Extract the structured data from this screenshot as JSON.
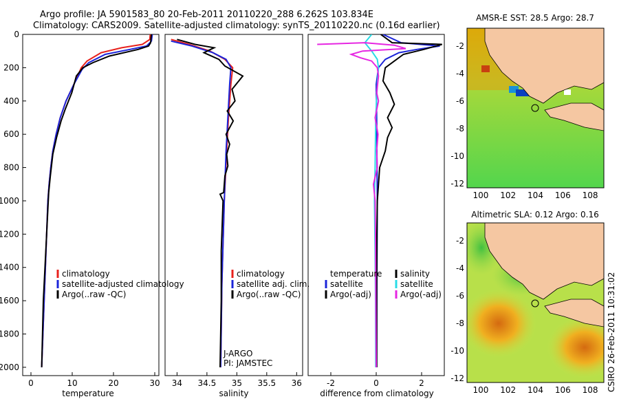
{
  "header": {
    "line1": "Argo profile: JA 5901583_80 20-Feb-2011 20110220_288 6.262S 103.834E",
    "line2": "Climatology: CARS2009. Satellite-adjusted climatology: synTS_20110220.nc (0.16d earlier)"
  },
  "side_label": "CSIRO 26-Feb-2011 10:31:02",
  "colors": {
    "climatology": "#e8211c",
    "satellite": "#1b24d9",
    "argo": "#000000",
    "satellite_sal": "#28dce6",
    "argo_adj_sal": "#e626e2"
  },
  "chart_data": [
    {
      "type": "line",
      "xlabel": "temperature",
      "xlim": [
        -2,
        31
      ],
      "xticks": [
        "0",
        "10",
        "20",
        "30"
      ],
      "ylim": [
        2050,
        0
      ],
      "yticks": [
        "0",
        "200",
        "400",
        "600",
        "800",
        "1000",
        "1200",
        "1400",
        "1600",
        "1800",
        "2000"
      ],
      "legend": [
        "climatology",
        "satellite-adjusted climatology",
        "Argo(..raw -QC)"
      ],
      "series": [
        {
          "name": "climatology",
          "color": "#e8211c",
          "points": [
            [
              28.9,
              0
            ],
            [
              28.8,
              30
            ],
            [
              27,
              60
            ],
            [
              22,
              80
            ],
            [
              17,
              110
            ],
            [
              13.6,
              160
            ],
            [
              12.2,
              200
            ],
            [
              10.4,
              300
            ],
            [
              8.5,
              400
            ],
            [
              7.1,
              500
            ],
            [
              6.1,
              600
            ],
            [
              5.3,
              700
            ],
            [
              4.8,
              800
            ],
            [
              4.4,
              900
            ],
            [
              4.1,
              1000
            ],
            [
              3.8,
              1200
            ],
            [
              3.5,
              1400
            ],
            [
              3.2,
              1600
            ],
            [
              2.9,
              1800
            ],
            [
              2.6,
              2000
            ]
          ]
        },
        {
          "name": "satellite-adjusted climatology",
          "color": "#1b24d9",
          "points": [
            [
              29.4,
              0
            ],
            [
              29.2,
              40
            ],
            [
              28,
              70
            ],
            [
              24,
              90
            ],
            [
              18,
              120
            ],
            [
              14,
              170
            ],
            [
              12.4,
              210
            ],
            [
              10.4,
              300
            ],
            [
              8.5,
              400
            ],
            [
              7.1,
              500
            ],
            [
              6.1,
              600
            ],
            [
              5.3,
              700
            ],
            [
              4.8,
              800
            ],
            [
              4.4,
              900
            ],
            [
              4.1,
              1000
            ],
            [
              3.8,
              1200
            ],
            [
              3.5,
              1400
            ],
            [
              3.2,
              1600
            ],
            [
              2.9,
              1800
            ],
            [
              2.6,
              2000
            ]
          ]
        },
        {
          "name": "Argo(..raw -QC)",
          "color": "#000000",
          "points": [
            [
              29.2,
              0
            ],
            [
              29.1,
              20
            ],
            [
              29,
              50
            ],
            [
              28.5,
              70
            ],
            [
              26,
              90
            ],
            [
              19,
              130
            ],
            [
              15,
              170
            ],
            [
              12.6,
              200
            ],
            [
              11,
              250
            ],
            [
              9.9,
              350
            ],
            [
              8.3,
              450
            ],
            [
              7.3,
              520
            ],
            [
              6.2,
              620
            ],
            [
              5.3,
              720
            ],
            [
              4.7,
              850
            ],
            [
              4.3,
              950
            ],
            [
              4.1,
              1050
            ],
            [
              3.8,
              1200
            ],
            [
              3.4,
              1400
            ],
            [
              3,
              1600
            ],
            [
              2.8,
              1800
            ],
            [
              2.6,
              2000
            ]
          ]
        }
      ]
    },
    {
      "type": "line",
      "xlabel": "salinity",
      "xlim": [
        33.8,
        36.1
      ],
      "xticks": [
        "34",
        "34.5",
        "35",
        "35.5",
        "36"
      ],
      "ylim": [
        2050,
        0
      ],
      "yticks": [],
      "legend": [
        "climatology",
        "satellite adj. clim.",
        "Argo(..raw -QC)"
      ],
      "annotations": [
        "J-ARGO",
        "PI: JAMSTEC"
      ],
      "series": [
        {
          "name": "climatology",
          "color": "#e8211c",
          "points": [
            [
              33.9,
              30
            ],
            [
              34.2,
              60
            ],
            [
              34.55,
              100
            ],
            [
              34.8,
              150
            ],
            [
              34.93,
              200
            ],
            [
              34.9,
              300
            ],
            [
              34.86,
              500
            ],
            [
              34.83,
              700
            ],
            [
              34.79,
              1000
            ],
            [
              34.75,
              1500
            ],
            [
              34.73,
              2000
            ]
          ]
        },
        {
          "name": "satellite adj. clim.",
          "color": "#1b24d9",
          "points": [
            [
              33.9,
              40
            ],
            [
              34.25,
              70
            ],
            [
              34.6,
              110
            ],
            [
              34.82,
              150
            ],
            [
              34.9,
              200
            ],
            [
              34.88,
              300
            ],
            [
              34.85,
              500
            ],
            [
              34.82,
              700
            ],
            [
              34.79,
              1000
            ],
            [
              34.75,
              1500
            ],
            [
              34.73,
              2000
            ]
          ]
        },
        {
          "name": "Argo(..raw -QC)",
          "color": "#000000",
          "points": [
            [
              34,
              30
            ],
            [
              34.3,
              60
            ],
            [
              34.62,
              80
            ],
            [
              34.45,
              110
            ],
            [
              34.7,
              150
            ],
            [
              34.8,
              190
            ],
            [
              35.1,
              250
            ],
            [
              34.92,
              330
            ],
            [
              34.97,
              400
            ],
            [
              34.84,
              460
            ],
            [
              34.94,
              520
            ],
            [
              34.82,
              600
            ],
            [
              34.88,
              660
            ],
            [
              34.83,
              720
            ],
            [
              34.85,
              790
            ],
            [
              34.8,
              850
            ],
            [
              34.78,
              950
            ],
            [
              34.72,
              960
            ],
            [
              34.77,
              1000
            ],
            [
              34.74,
              1300
            ],
            [
              34.74,
              1600
            ],
            [
              34.72,
              2000
            ]
          ]
        }
      ]
    },
    {
      "type": "line",
      "xlabel": "difference from climatology",
      "xlim": [
        -3,
        3
      ],
      "xticks": [
        "-2",
        "0",
        "2"
      ],
      "ylim": [
        2050,
        0
      ],
      "yticks": [],
      "legend_left": [
        "temperature",
        "satellite",
        "Argo(-adj)"
      ],
      "legend_right": [
        "salinity",
        "satellite",
        "Argo(-adj)"
      ],
      "series": [
        {
          "name": "temperature satellite",
          "color": "#1b24d9",
          "points": [
            [
              0.3,
              0
            ],
            [
              1.1,
              50
            ],
            [
              2.8,
              70
            ],
            [
              1.8,
              90
            ],
            [
              1,
              110
            ],
            [
              0.4,
              150
            ],
            [
              0.1,
              200
            ],
            [
              0,
              300
            ],
            [
              0.02,
              500
            ],
            [
              0.03,
              700
            ],
            [
              0.05,
              1000
            ],
            [
              0.03,
              1500
            ],
            [
              0.02,
              2000
            ]
          ]
        },
        {
          "name": "temperature Argo(-adj)",
          "color": "#000000",
          "points": [
            [
              0.2,
              0
            ],
            [
              0.7,
              50
            ],
            [
              2.9,
              60
            ],
            [
              2.1,
              90
            ],
            [
              1.2,
              120
            ],
            [
              0.8,
              160
            ],
            [
              0.4,
              200
            ],
            [
              0.3,
              280
            ],
            [
              0.6,
              350
            ],
            [
              0.8,
              420
            ],
            [
              0.5,
              500
            ],
            [
              0.7,
              560
            ],
            [
              0.5,
              620
            ],
            [
              0.4,
              700
            ],
            [
              0.15,
              800
            ],
            [
              0.1,
              900
            ],
            [
              0.05,
              1000
            ],
            [
              0.03,
              1200
            ],
            [
              0.02,
              1500
            ],
            [
              0.02,
              2000
            ]
          ]
        },
        {
          "name": "salinity satellite",
          "color": "#28dce6",
          "points": [
            [
              -0.2,
              0
            ],
            [
              -0.5,
              50
            ],
            [
              -0.2,
              100
            ],
            [
              0.05,
              150
            ],
            [
              0.1,
              200
            ],
            [
              0.05,
              300
            ],
            [
              -0.02,
              500
            ],
            [
              -0.05,
              800
            ],
            [
              -0.08,
              1000
            ],
            [
              -0.05,
              1300
            ],
            [
              -0.03,
              1600
            ],
            [
              -0.02,
              2000
            ]
          ]
        },
        {
          "name": "salinity Argo(-adj)",
          "color": "#e626e2",
          "points": [
            [
              -2.6,
              60
            ],
            [
              -0.5,
              50
            ],
            [
              0.8,
              65
            ],
            [
              1.3,
              85
            ],
            [
              -0.6,
              100
            ],
            [
              -1.1,
              120
            ],
            [
              -0.7,
              140
            ],
            [
              -0.2,
              160
            ],
            [
              0.05,
              200
            ],
            [
              0.1,
              250
            ],
            [
              0.02,
              350
            ],
            [
              0.1,
              400
            ],
            [
              -0.05,
              500
            ],
            [
              0.08,
              600
            ],
            [
              0.02,
              700
            ],
            [
              0.05,
              800
            ],
            [
              -0.12,
              900
            ],
            [
              -0.05,
              1000
            ],
            [
              -0.03,
              1200
            ],
            [
              -0.02,
              1500
            ],
            [
              0,
              2000
            ]
          ]
        }
      ]
    },
    {
      "type": "heatmap",
      "title": "AMSR-E SST: 28.5 Argo: 28.7",
      "xlim": [
        99,
        109
      ],
      "ylim": [
        -12.3,
        -0.7
      ],
      "xticks": [
        "100",
        "102",
        "104",
        "106",
        "108"
      ],
      "yticks": [
        "-2",
        "-4",
        "-6",
        "-8",
        "-10",
        "-12"
      ],
      "marker": [
        103.834,
        -6.262
      ]
    },
    {
      "type": "heatmap",
      "title": "Altimetric SLA: 0.12 Argo: 0.16",
      "xlim": [
        99,
        109
      ],
      "ylim": [
        -12.3,
        -0.7
      ],
      "xticks": [
        "100",
        "102",
        "104",
        "106",
        "108"
      ],
      "yticks": [
        "-2",
        "-4",
        "-6",
        "-8",
        "-10",
        "-12"
      ],
      "marker": [
        103.834,
        -6.262
      ]
    }
  ]
}
